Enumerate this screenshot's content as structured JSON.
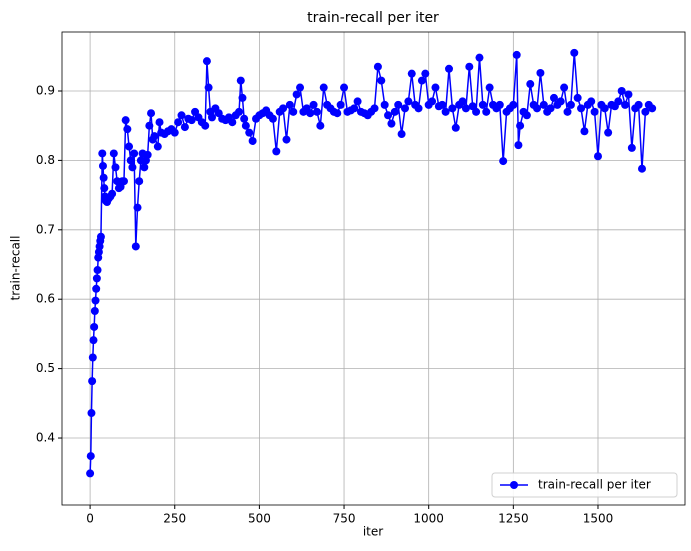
{
  "chart_data": {
    "type": "line",
    "title": "train-recall per iter",
    "xlabel": "iter",
    "ylabel": "train-recall",
    "x": [
      0,
      2,
      4,
      6,
      8,
      10,
      12,
      14,
      16,
      18,
      20,
      22,
      24,
      26,
      28,
      30,
      32,
      36,
      38,
      40,
      42,
      44,
      46,
      50,
      55,
      60,
      65,
      70,
      75,
      80,
      85,
      90,
      95,
      100,
      105,
      110,
      115,
      120,
      125,
      130,
      135,
      140,
      145,
      150,
      155,
      160,
      165,
      170,
      175,
      180,
      185,
      190,
      200,
      205,
      210,
      220,
      230,
      240,
      250,
      260,
      270,
      280,
      290,
      300,
      310,
      320,
      330,
      340,
      345,
      350,
      355,
      360,
      370,
      380,
      390,
      400,
      410,
      420,
      430,
      440,
      445,
      450,
      455,
      460,
      470,
      480,
      490,
      500,
      510,
      520,
      530,
      540,
      550,
      560,
      570,
      580,
      590,
      600,
      610,
      620,
      630,
      640,
      650,
      660,
      670,
      680,
      690,
      700,
      710,
      720,
      730,
      740,
      750,
      760,
      770,
      780,
      790,
      800,
      810,
      820,
      830,
      840,
      850,
      860,
      870,
      880,
      890,
      900,
      910,
      920,
      930,
      940,
      950,
      960,
      970,
      980,
      990,
      1000,
      1010,
      1020,
      1030,
      1040,
      1050,
      1060,
      1070,
      1080,
      1090,
      1100,
      1110,
      1120,
      1130,
      1140,
      1150,
      1160,
      1170,
      1180,
      1190,
      1200,
      1210,
      1220,
      1230,
      1240,
      1250,
      1260,
      1265,
      1270,
      1280,
      1290,
      1300,
      1310,
      1320,
      1330,
      1340,
      1350,
      1360,
      1370,
      1380,
      1390,
      1400,
      1410,
      1420,
      1430,
      1440,
      1450,
      1460,
      1470,
      1480,
      1490,
      1500,
      1510,
      1520,
      1530,
      1540,
      1550,
      1560,
      1570,
      1580,
      1590,
      1600,
      1610,
      1620,
      1630,
      1640,
      1650,
      1660
    ],
    "series": [
      {
        "name": "train-recall per iter",
        "color": "#0000ff",
        "values": [
          0.349,
          0.374,
          0.436,
          0.482,
          0.516,
          0.541,
          0.56,
          0.583,
          0.598,
          0.615,
          0.63,
          0.642,
          0.66,
          0.668,
          0.676,
          0.684,
          0.69,
          0.81,
          0.792,
          0.775,
          0.76,
          0.748,
          0.742,
          0.74,
          0.745,
          0.748,
          0.752,
          0.81,
          0.79,
          0.77,
          0.76,
          0.762,
          0.77,
          0.77,
          0.858,
          0.845,
          0.82,
          0.8,
          0.79,
          0.81,
          0.676,
          0.732,
          0.77,
          0.8,
          0.81,
          0.79,
          0.8,
          0.808,
          0.85,
          0.868,
          0.83,
          0.835,
          0.82,
          0.855,
          0.84,
          0.838,
          0.842,
          0.845,
          0.84,
          0.855,
          0.865,
          0.848,
          0.86,
          0.858,
          0.87,
          0.862,
          0.855,
          0.85,
          0.943,
          0.905,
          0.87,
          0.862,
          0.875,
          0.868,
          0.86,
          0.858,
          0.862,
          0.855,
          0.865,
          0.87,
          0.915,
          0.89,
          0.86,
          0.85,
          0.84,
          0.828,
          0.86,
          0.865,
          0.868,
          0.872,
          0.865,
          0.86,
          0.813,
          0.87,
          0.875,
          0.83,
          0.88,
          0.87,
          0.895,
          0.905,
          0.87,
          0.875,
          0.868,
          0.88,
          0.87,
          0.85,
          0.905,
          0.88,
          0.875,
          0.87,
          0.868,
          0.88,
          0.905,
          0.87,
          0.872,
          0.875,
          0.885,
          0.87,
          0.868,
          0.865,
          0.87,
          0.875,
          0.935,
          0.915,
          0.88,
          0.865,
          0.853,
          0.87,
          0.88,
          0.838,
          0.875,
          0.885,
          0.925,
          0.88,
          0.875,
          0.915,
          0.925,
          0.88,
          0.885,
          0.905,
          0.878,
          0.88,
          0.87,
          0.932,
          0.875,
          0.847,
          0.88,
          0.885,
          0.875,
          0.935,
          0.878,
          0.87,
          0.948,
          0.88,
          0.87,
          0.905,
          0.88,
          0.875,
          0.88,
          0.799,
          0.87,
          0.875,
          0.88,
          0.952,
          0.822,
          0.85,
          0.87,
          0.865,
          0.91,
          0.88,
          0.875,
          0.926,
          0.88,
          0.87,
          0.875,
          0.89,
          0.88,
          0.885,
          0.905,
          0.87,
          0.88,
          0.955,
          0.89,
          0.875,
          0.842,
          0.88,
          0.885,
          0.87,
          0.806,
          0.88,
          0.875,
          0.84,
          0.88,
          0.878,
          0.885,
          0.9,
          0.88,
          0.895,
          0.818,
          0.875,
          0.88,
          0.788,
          0.87,
          0.88,
          0.875
        ]
      }
    ],
    "xlim": [
      -83,
      1757
    ],
    "ylim": [
      0.3035,
      0.985
    ],
    "xticks": [
      0,
      250,
      500,
      750,
      1000,
      1250,
      1500
    ],
    "yticks": [
      0.4,
      0.5,
      0.6,
      0.7,
      0.8,
      0.9
    ],
    "grid": true,
    "legend": "lower right"
  }
}
